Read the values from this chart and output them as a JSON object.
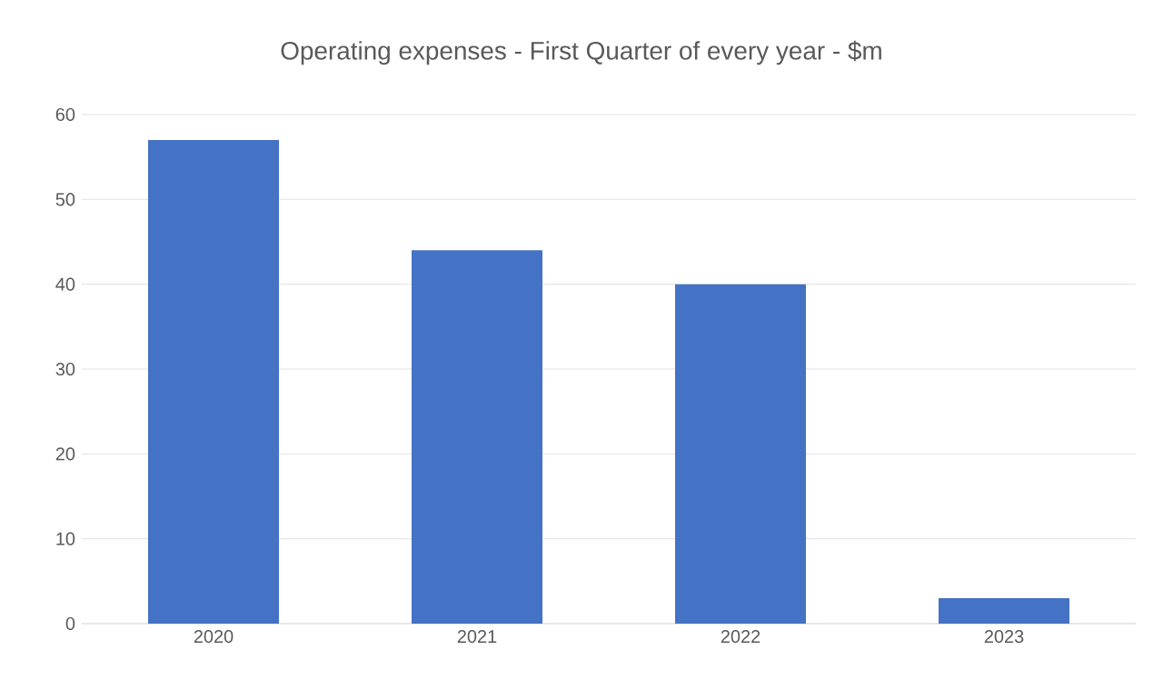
{
  "chart_data": {
    "type": "bar",
    "title": "Operating expenses - First Quarter of every year - $m",
    "categories": [
      "2020",
      "2021",
      "2022",
      "2023"
    ],
    "values": [
      57,
      44,
      40,
      3
    ],
    "color": "#4472c4",
    "ylim": [
      0,
      60
    ],
    "yticks": [
      0,
      10,
      20,
      30,
      40,
      50,
      60
    ],
    "grid": "y"
  }
}
